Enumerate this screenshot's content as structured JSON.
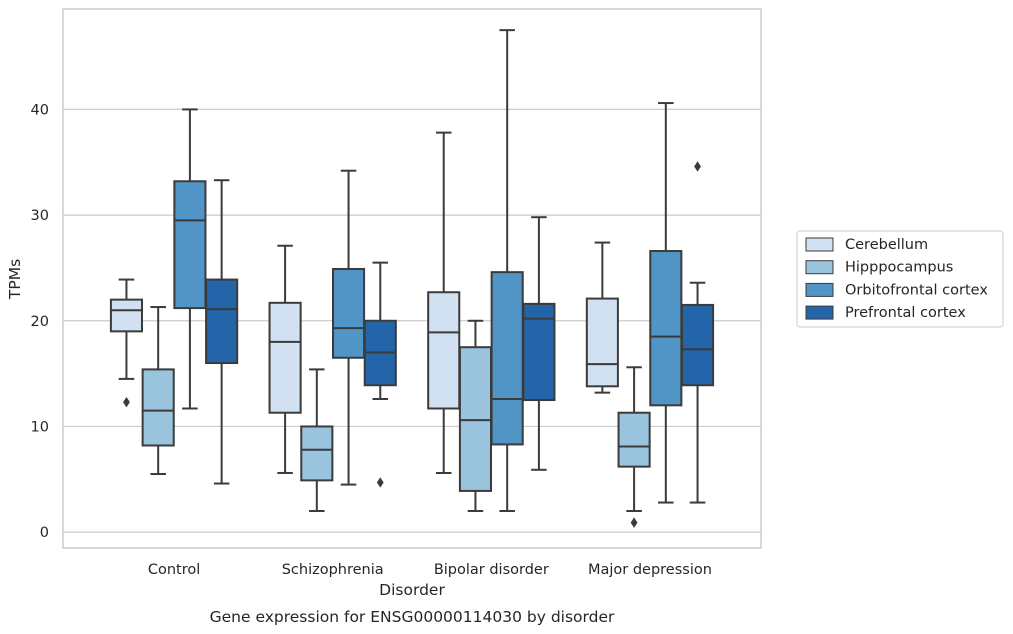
{
  "chart_data": {
    "type": "box",
    "title": "",
    "caption": "Gene expression for ENSG00000114030 by disorder",
    "xlabel": "Disorder",
    "ylabel": "TPMs",
    "ylim": [
      -1.5,
      49.5
    ],
    "yticks": [
      0,
      10,
      20,
      30,
      40
    ],
    "grid": true,
    "legend_position": "right",
    "categories": [
      "Control",
      "Schizophrenia",
      "Bipolar disorder",
      "Major depression"
    ],
    "series": [
      {
        "name": "Cerebellum",
        "color": "#d1e1f2",
        "boxes": [
          {
            "whisker_low": 14.5,
            "q1": 19.0,
            "median": 21.0,
            "q3": 22.0,
            "whisker_high": 23.9,
            "outliers": [
              12.3
            ]
          },
          {
            "whisker_low": 5.6,
            "q1": 11.3,
            "median": 18.0,
            "q3": 21.7,
            "whisker_high": 27.1,
            "outliers": []
          },
          {
            "whisker_low": 5.6,
            "q1": 11.7,
            "median": 18.9,
            "q3": 22.7,
            "whisker_high": 37.8,
            "outliers": []
          },
          {
            "whisker_low": 13.2,
            "q1": 13.8,
            "median": 15.9,
            "q3": 22.1,
            "whisker_high": 27.4,
            "outliers": []
          }
        ]
      },
      {
        "name": "Hipppocampus",
        "color": "#9ac3de",
        "boxes": [
          {
            "whisker_low": 5.5,
            "q1": 8.2,
            "median": 11.5,
            "q3": 15.4,
            "whisker_high": 21.3,
            "outliers": []
          },
          {
            "whisker_low": 2.0,
            "q1": 4.9,
            "median": 7.8,
            "q3": 10.0,
            "whisker_high": 15.4,
            "outliers": []
          },
          {
            "whisker_low": 2.0,
            "q1": 3.9,
            "median": 10.6,
            "q3": 17.5,
            "whisker_high": 20.0,
            "outliers": []
          },
          {
            "whisker_low": 2.0,
            "q1": 6.2,
            "median": 8.1,
            "q3": 11.3,
            "whisker_high": 15.6,
            "outliers": [
              0.9
            ]
          }
        ]
      },
      {
        "name": "Orbitofrontal cortex",
        "color": "#5095c5",
        "boxes": [
          {
            "whisker_low": 11.7,
            "q1": 21.2,
            "median": 29.5,
            "q3": 33.2,
            "whisker_high": 40.0,
            "outliers": []
          },
          {
            "whisker_low": 4.5,
            "q1": 16.5,
            "median": 19.3,
            "q3": 24.9,
            "whisker_high": 34.2,
            "outliers": []
          },
          {
            "whisker_low": 2.0,
            "q1": 8.3,
            "median": 12.6,
            "q3": 24.6,
            "whisker_high": 47.5,
            "outliers": []
          },
          {
            "whisker_low": 2.8,
            "q1": 12.0,
            "median": 18.5,
            "q3": 26.6,
            "whisker_high": 40.6,
            "outliers": []
          }
        ]
      },
      {
        "name": "Prefrontal cortex",
        "color": "#2464a8",
        "boxes": [
          {
            "whisker_low": 4.6,
            "q1": 16.0,
            "median": 21.1,
            "q3": 23.9,
            "whisker_high": 33.3,
            "outliers": []
          },
          {
            "whisker_low": 12.6,
            "q1": 13.9,
            "median": 17.0,
            "q3": 20.0,
            "whisker_high": 25.5,
            "outliers": [
              4.7
            ]
          },
          {
            "whisker_low": 5.9,
            "q1": 12.5,
            "median": 20.2,
            "q3": 21.6,
            "whisker_high": 29.8,
            "outliers": []
          },
          {
            "whisker_low": 2.8,
            "q1": 13.9,
            "median": 17.3,
            "q3": 21.5,
            "whisker_high": 23.6,
            "outliers": [
              34.6
            ]
          }
        ]
      }
    ]
  }
}
